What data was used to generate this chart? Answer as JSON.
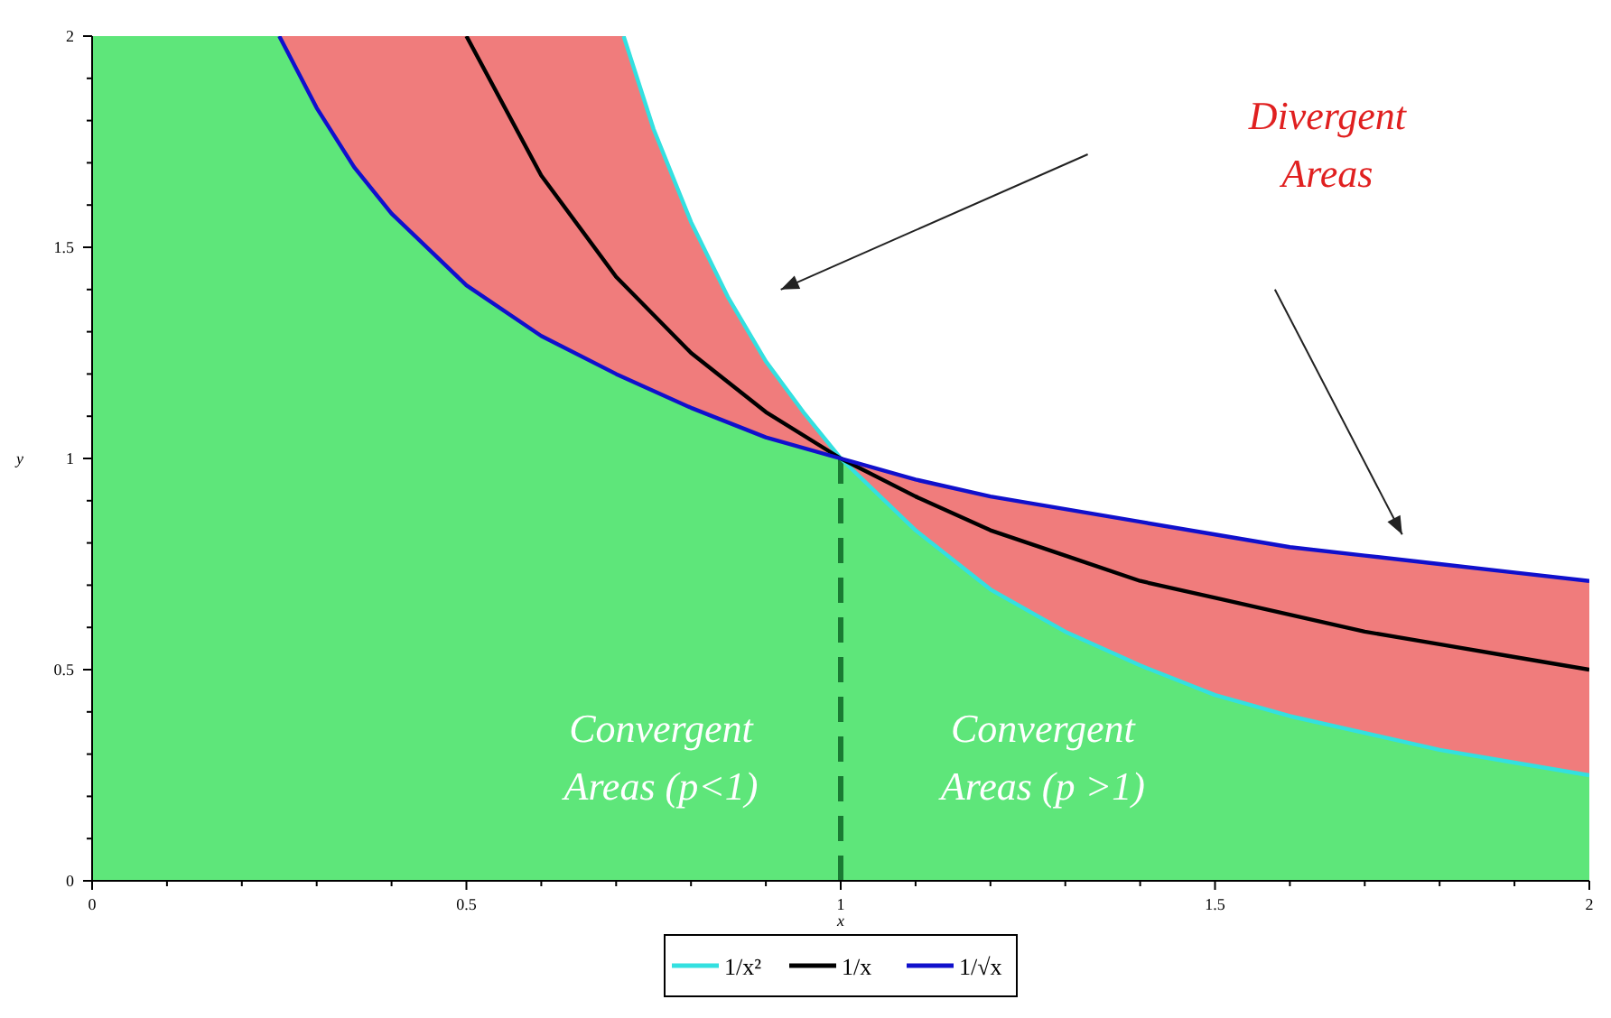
{
  "chart_data": {
    "type": "line",
    "xlabel": "x",
    "ylabel": "y",
    "xlim": [
      0,
      2
    ],
    "ylim": [
      0,
      2
    ],
    "xticks": [
      0,
      {
        "value": 0.1,
        "label": null
      },
      {
        "value": 0.2,
        "label": null
      },
      {
        "value": 0.3,
        "label": null
      },
      {
        "value": 0.4,
        "label": null
      },
      0.5,
      {
        "value": 0.6,
        "label": null
      },
      {
        "value": 0.7,
        "label": null
      },
      {
        "value": 0.8,
        "label": null
      },
      {
        "value": 0.9,
        "label": null
      },
      1,
      {
        "value": 1.1,
        "label": null
      },
      {
        "value": 1.2,
        "label": null
      },
      {
        "value": 1.3,
        "label": null
      },
      {
        "value": 1.4,
        "label": null
      },
      1.5,
      {
        "value": 1.6,
        "label": null
      },
      {
        "value": 1.7,
        "label": null
      },
      {
        "value": 1.8,
        "label": null
      },
      {
        "value": 1.9,
        "label": null
      },
      2
    ],
    "yticks": [
      0,
      {
        "value": 0.1,
        "label": null
      },
      {
        "value": 0.2,
        "label": null
      },
      {
        "value": 0.3,
        "label": null
      },
      {
        "value": 0.4,
        "label": null
      },
      0.5,
      {
        "value": 0.6,
        "label": null
      },
      {
        "value": 0.7,
        "label": null
      },
      {
        "value": 0.8,
        "label": null
      },
      {
        "value": 0.9,
        "label": null
      },
      1,
      {
        "value": 1.1,
        "label": null
      },
      {
        "value": 1.2,
        "label": null
      },
      {
        "value": 1.3,
        "label": null
      },
      {
        "value": 1.4,
        "label": null
      },
      1.5,
      {
        "value": 1.6,
        "label": null
      },
      {
        "value": 1.7,
        "label": null
      },
      {
        "value": 1.8,
        "label": null
      },
      {
        "value": 1.9,
        "label": null
      },
      2
    ],
    "legend": "bottom",
    "grid": false,
    "series": [
      {
        "type": "area",
        "color": "#f07c7c",
        "x": [
          0.25,
          0.3,
          0.35,
          0.4,
          0.5,
          0.6,
          0.7,
          0.71,
          0.75,
          0.8,
          0.85,
          0.9,
          0.95,
          1,
          1.1,
          1.2,
          1.3,
          1.4,
          1.5,
          1.6,
          1.7,
          1.8,
          1.9,
          2
        ],
        "values": [
          2,
          2,
          2,
          2,
          2,
          2,
          2,
          2,
          1.78,
          1.56,
          1.38,
          1.23,
          1.11,
          1,
          0.95,
          0.91,
          0.88,
          0.85,
          0.82,
          0.79,
          0.77,
          0.75,
          0.73,
          0.71
        ]
      },
      {
        "type": "area",
        "color": "#5ee67a",
        "x": [
          0,
          0.25,
          0.3,
          0.35,
          0.4,
          0.5,
          0.6,
          0.7,
          0.8,
          0.9,
          1,
          1.1,
          1.2,
          1.3,
          1.4,
          1.5,
          1.6,
          1.7,
          1.8,
          1.9,
          2
        ],
        "values": [
          2,
          2,
          1.83,
          1.69,
          1.58,
          1.41,
          1.29,
          1.2,
          1.12,
          1.05,
          1,
          0.83,
          0.69,
          0.59,
          0.51,
          0.44,
          0.39,
          0.35,
          0.31,
          0.28,
          0.25
        ]
      },
      {
        "type": "line",
        "line_style": "dashed",
        "color": "#1a7a33",
        "x": [
          1,
          1
        ],
        "values": [
          0,
          1
        ]
      },
      {
        "name": "1/x²",
        "color": "#33e0e0",
        "x": [
          0.71,
          0.75,
          0.8,
          0.85,
          0.9,
          0.95,
          1,
          1.1,
          1.2,
          1.3,
          1.4,
          1.5,
          1.6,
          1.7,
          1.8,
          1.9,
          2
        ],
        "values": [
          2,
          1.78,
          1.56,
          1.38,
          1.23,
          1.11,
          1,
          0.83,
          0.69,
          0.59,
          0.51,
          0.44,
          0.39,
          0.35,
          0.31,
          0.28,
          0.25
        ]
      },
      {
        "name": "1/x",
        "color": "#000000",
        "x": [
          0.5,
          0.6,
          0.7,
          0.8,
          0.9,
          1,
          1.1,
          1.2,
          1.3,
          1.4,
          1.5,
          1.6,
          1.7,
          1.8,
          1.9,
          2
        ],
        "values": [
          2,
          1.67,
          1.43,
          1.25,
          1.11,
          1,
          0.91,
          0.83,
          0.77,
          0.71,
          0.67,
          0.63,
          0.59,
          0.56,
          0.53,
          0.5
        ]
      },
      {
        "name": "1/√x",
        "color": "#1010cc",
        "x": [
          0.25,
          0.3,
          0.35,
          0.4,
          0.5,
          0.6,
          0.7,
          0.8,
          0.9,
          1,
          1.1,
          1.2,
          1.3,
          1.4,
          1.5,
          1.6,
          1.7,
          1.8,
          1.9,
          2
        ],
        "values": [
          2,
          1.83,
          1.69,
          1.58,
          1.41,
          1.29,
          1.2,
          1.12,
          1.05,
          1,
          0.95,
          0.91,
          0.88,
          0.85,
          0.82,
          0.79,
          0.77,
          0.75,
          0.73,
          0.71
        ]
      }
    ],
    "annotations": [
      "Divergent Areas",
      "Convergent Areas (p<1)",
      "Convergent Areas (p >1)"
    ]
  }
}
